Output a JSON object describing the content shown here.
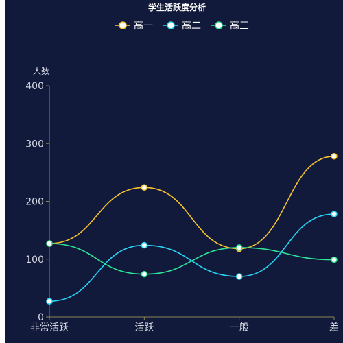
{
  "chart_data": {
    "type": "line",
    "title": "学生活跃度分析",
    "ylabel": "人数",
    "xlabel": "",
    "categories": [
      "非常活跃",
      "活跃",
      "一般",
      "差"
    ],
    "ylim": [
      0,
      400
    ],
    "yticks": [
      0,
      100,
      200,
      300,
      400
    ],
    "smooth": true,
    "grid": false,
    "legend_position": "top-center",
    "series": [
      {
        "name": "高一",
        "color": "#f5c330",
        "values": [
          127,
          224,
          118,
          278
        ]
      },
      {
        "name": "高二",
        "color": "#29d5f5",
        "values": [
          27,
          124,
          70,
          178
        ]
      },
      {
        "name": "高三",
        "color": "#2ee598",
        "values": [
          127,
          74,
          120,
          99
        ]
      }
    ],
    "axis_color": "#8a8456",
    "panel_color": "#121a3b"
  }
}
